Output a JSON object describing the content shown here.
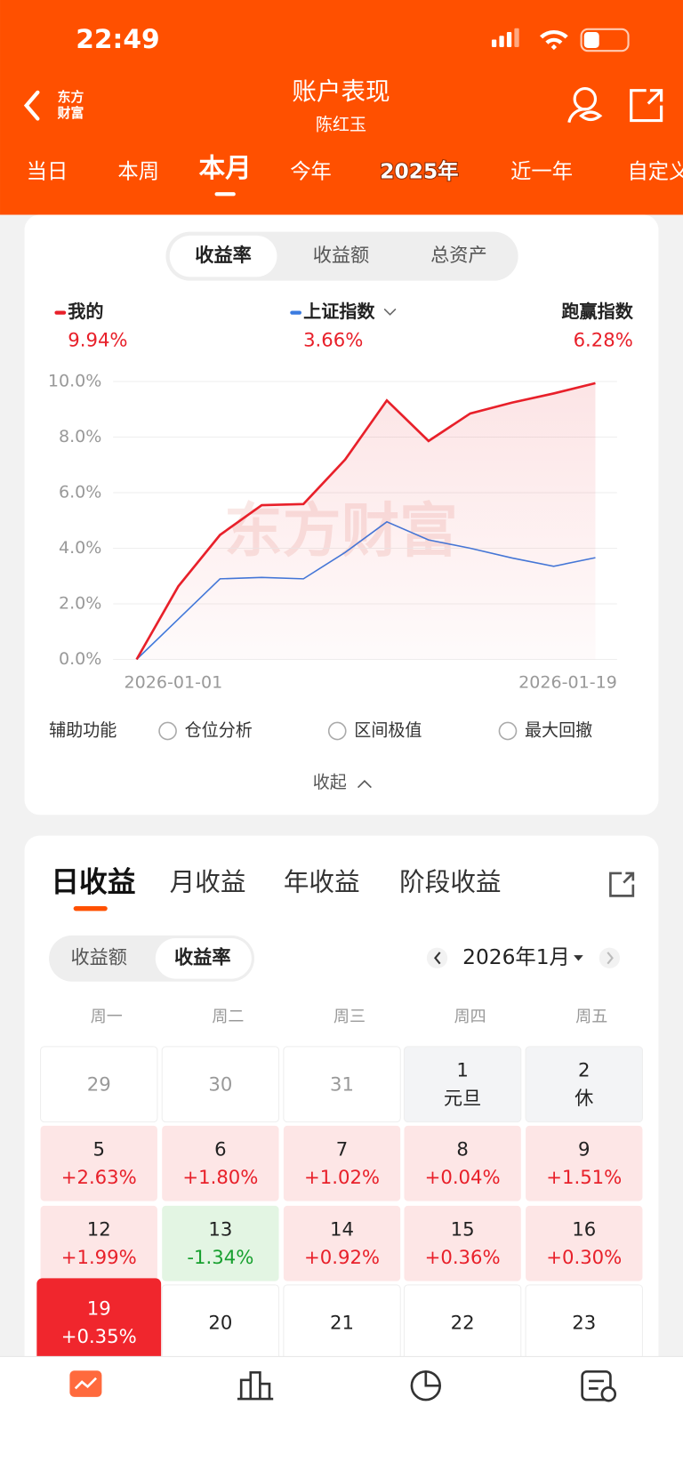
{
  "status_bar": {
    "time": "22:49"
  },
  "header": {
    "logo": [
      "东方",
      "财富"
    ],
    "title": "账户表现",
    "subtitle": "陈红玉"
  },
  "period_tabs": {
    "items": [
      "当日",
      "本周",
      "本月",
      "今年",
      "2025年",
      "近一年",
      "自定义"
    ],
    "active": 2
  },
  "metric_tabs": {
    "items": [
      "收益率",
      "收益额",
      "总资产"
    ],
    "active": 0
  },
  "chart_data": {
    "type": "line",
    "watermark": "东方财富",
    "categories": [
      "2026-01-01",
      null,
      null,
      null,
      null,
      null,
      null,
      null,
      null,
      null,
      null,
      "2026-01-19"
    ],
    "series": [
      {
        "name": "我的",
        "color": "#e8202a",
        "total_label": "9.94%",
        "values": [
          0,
          2.63,
          4.48,
          5.55,
          5.59,
          7.19,
          9.32,
          7.86,
          8.85,
          9.24,
          9.57,
          9.94
        ]
      },
      {
        "name": "上证指数",
        "color": "#3b7be0",
        "total_label": "3.66%",
        "values": [
          0,
          1.45,
          2.9,
          2.95,
          2.9,
          3.85,
          4.95,
          4.3,
          4.0,
          3.65,
          3.35,
          3.66
        ]
      }
    ],
    "excess": {
      "name": "跑赢指数",
      "label": "6.28%"
    },
    "ylim": [
      0,
      10
    ],
    "yticks": [
      {
        "value": 0,
        "label": "0.0%"
      },
      {
        "value": 2,
        "label": "2.0%"
      },
      {
        "value": 4,
        "label": "4.0%"
      },
      {
        "value": 6,
        "label": "6.0%"
      },
      {
        "value": 8,
        "label": "8.0%"
      },
      {
        "value": 10,
        "label": "10.0%"
      }
    ],
    "grid": true
  },
  "tools": {
    "label": "辅助功能",
    "options": [
      "仓位分析",
      "区间极值",
      "最大回撤"
    ],
    "collapse": "收起"
  },
  "returns_tabs": {
    "items": [
      "日收益",
      "月收益",
      "年收益",
      "阶段收益"
    ],
    "active": 0
  },
  "toggle": {
    "items": [
      "收益额",
      "收益率"
    ],
    "active": 1
  },
  "calendar": {
    "month": "2026年1月",
    "weekdays": [
      "周一",
      "周二",
      "周三",
      "周四",
      "周五"
    ],
    "selected": {
      "row": 3,
      "col": 0
    },
    "rows": [
      [
        {
          "day": "29",
          "other_month": true
        },
        {
          "day": "30",
          "other_month": true
        },
        {
          "day": "31",
          "other_month": true
        },
        {
          "day": "1",
          "note": "元旦"
        },
        {
          "day": "2",
          "note": "休"
        }
      ],
      [
        {
          "day": "5",
          "value": "+2.63%"
        },
        {
          "day": "6",
          "value": "+1.80%"
        },
        {
          "day": "7",
          "value": "+1.02%"
        },
        {
          "day": "8",
          "value": "+0.04%"
        },
        {
          "day": "9",
          "value": "+1.51%"
        }
      ],
      [
        {
          "day": "12",
          "value": "+1.99%"
        },
        {
          "day": "13",
          "value": "-1.34%"
        },
        {
          "day": "14",
          "value": "+0.92%"
        },
        {
          "day": "15",
          "value": "+0.36%"
        },
        {
          "day": "16",
          "value": "+0.30%"
        }
      ],
      [
        {
          "day": "19",
          "value": "+0.35%"
        },
        {
          "day": "20"
        },
        {
          "day": "21"
        },
        {
          "day": "22"
        },
        {
          "day": "23"
        }
      ]
    ]
  },
  "bottom_nav": {
    "items": [
      "账户表现",
      "收益排名",
      "持仓分析",
      "投资账单"
    ],
    "active": 0
  }
}
